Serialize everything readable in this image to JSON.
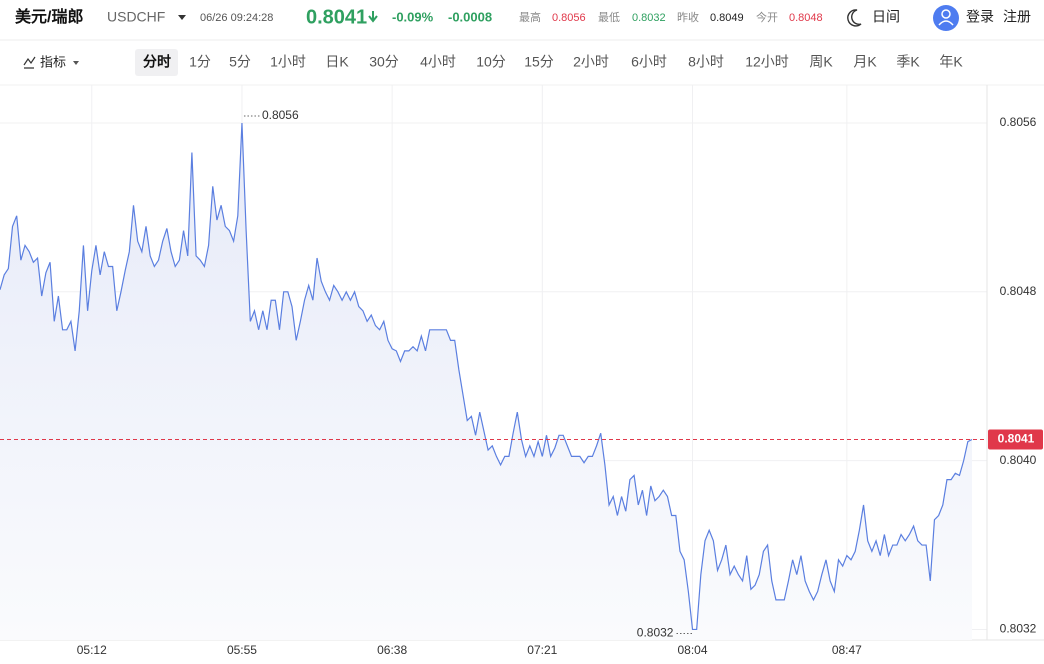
{
  "header": {
    "pair": "美元/瑞郎",
    "symbol": "USDCHF",
    "time": "06/26 09:24:28",
    "price": "0.8041",
    "change_pct": "-0.09%",
    "change": "-0.0008",
    "stats": [
      {
        "label": "最高",
        "value": "0.8056"
      },
      {
        "label": "最低",
        "value": "0.8032"
      },
      {
        "label": "昨收",
        "value": "0.8049"
      },
      {
        "label": "今开",
        "value": "0.8048"
      }
    ],
    "theme": "日间",
    "login": "登录",
    "register": "注册"
  },
  "toolbar": {
    "indicator": "指标",
    "intervals": [
      "分时",
      "1分",
      "5分",
      "1小时",
      "日K",
      "30分",
      "4小时",
      "10分",
      "15分",
      "2小时",
      "6小时",
      "8小时",
      "12小时",
      "周K",
      "月K",
      "季K",
      "年K"
    ]
  },
  "chart_data": {
    "type": "line",
    "color": "#5b7fe0",
    "grid": true,
    "categories": [
      null,
      null,
      null,
      null,
      null,
      null,
      null,
      null,
      null,
      null,
      null,
      null,
      null,
      null,
      null,
      null,
      null,
      null,
      null,
      null,
      null,
      null,
      "05:12",
      null,
      null,
      null,
      null,
      null,
      null,
      null,
      null,
      null,
      null,
      null,
      null,
      null,
      null,
      null,
      null,
      null,
      null,
      null,
      null,
      null,
      null,
      null,
      null,
      null,
      null,
      null,
      null,
      null,
      null,
      null,
      null,
      null,
      null,
      null,
      "05:55",
      null,
      null,
      null,
      null,
      null,
      null,
      null,
      null,
      null,
      null,
      null,
      null,
      null,
      null,
      null,
      null,
      null,
      null,
      null,
      null,
      null,
      null,
      null,
      null,
      null,
      null,
      null,
      null,
      null,
      null,
      null,
      null,
      null,
      null,
      null,
      "06:38",
      null,
      null,
      null,
      null,
      null,
      null,
      null,
      null,
      null,
      null,
      null,
      null,
      null,
      null,
      null,
      null,
      null,
      null,
      null,
      null,
      null,
      null,
      null,
      null,
      null,
      null,
      null,
      null,
      null,
      null,
      null,
      null,
      null,
      null,
      null,
      "07:21",
      null,
      null,
      null,
      null,
      null,
      null,
      null,
      null,
      null,
      null,
      null,
      null,
      null,
      null,
      null,
      null,
      null,
      null,
      null,
      null,
      null,
      null,
      null,
      null,
      null,
      null,
      null,
      null,
      null,
      null,
      null,
      null,
      null,
      null,
      null,
      "08:04",
      null,
      null,
      null,
      null,
      null,
      null,
      null,
      null,
      null,
      null,
      null,
      null,
      null,
      null,
      null,
      null,
      null,
      null,
      null,
      null,
      null,
      null,
      null,
      null,
      null,
      null,
      null,
      null,
      null,
      null,
      null,
      null,
      null,
      null,
      null,
      null,
      "08:47",
      null,
      null,
      null,
      null,
      null,
      null,
      null,
      null,
      null,
      null,
      null,
      null,
      null,
      null,
      null,
      null,
      null,
      null,
      null,
      null,
      null,
      null,
      null,
      null,
      null,
      null,
      null,
      null,
      null,
      null
    ],
    "values": [
      0.80481,
      0.80488,
      0.80491,
      0.80511,
      0.80516,
      0.80495,
      0.80502,
      0.80499,
      0.80494,
      0.80496,
      0.80478,
      0.80489,
      0.80494,
      0.80466,
      0.80478,
      0.80462,
      0.80462,
      0.80466,
      0.80452,
      0.80471,
      0.80502,
      0.80471,
      0.8049,
      0.80502,
      0.80488,
      0.80499,
      0.80492,
      0.80492,
      0.80471,
      0.8048,
      0.8049,
      0.80499,
      0.80521,
      0.80504,
      0.80499,
      0.80511,
      0.80497,
      0.80492,
      0.80495,
      0.80504,
      0.8051,
      0.80499,
      0.80492,
      0.80495,
      0.80509,
      0.80497,
      0.80546,
      0.80497,
      0.80495,
      0.80492,
      0.80502,
      0.8053,
      0.80514,
      0.80521,
      0.80511,
      0.80509,
      0.80504,
      0.80516,
      0.8056,
      0.80509,
      0.80466,
      0.80471,
      0.80462,
      0.80471,
      0.80462,
      0.80476,
      0.80476,
      0.80462,
      0.8048,
      0.8048,
      0.80473,
      0.80457,
      0.80466,
      0.80476,
      0.80483,
      0.80476,
      0.80496,
      0.80485,
      0.8048,
      0.80476,
      0.80483,
      0.8048,
      0.80476,
      0.8048,
      0.80476,
      0.8048,
      0.80473,
      0.80471,
      0.80466,
      0.80469,
      0.80464,
      0.80462,
      0.80466,
      0.80457,
      0.80453,
      0.80452,
      0.80447,
      0.80452,
      0.80452,
      0.80454,
      0.80452,
      0.80459,
      0.80452,
      0.80462,
      0.80462,
      0.80462,
      0.80462,
      0.80462,
      0.80457,
      0.80457,
      0.80443,
      0.80431,
      0.80419,
      0.80421,
      0.80412,
      0.80423,
      0.80414,
      0.80405,
      0.80407,
      0.80402,
      0.80398,
      0.80402,
      0.80402,
      0.80413,
      0.80423,
      0.8041,
      0.80402,
      0.80407,
      0.80402,
      0.80409,
      0.80402,
      0.80412,
      0.80402,
      0.80406,
      0.80412,
      0.80412,
      0.80407,
      0.80402,
      0.80402,
      0.80402,
      0.80399,
      0.80402,
      0.80402,
      0.80407,
      0.80413,
      0.80398,
      0.80379,
      0.80383,
      0.80374,
      0.80383,
      0.80376,
      0.80391,
      0.80393,
      0.80379,
      0.80386,
      0.80374,
      0.80388,
      0.80381,
      0.80383,
      0.80386,
      0.80383,
      0.80374,
      0.80374,
      0.80357,
      0.80353,
      0.80338,
      0.8032,
      0.8032,
      0.80346,
      0.80362,
      0.80367,
      0.80362,
      0.80348,
      0.80353,
      0.8036,
      0.80346,
      0.8035,
      0.80346,
      0.80343,
      0.80355,
      0.80339,
      0.80341,
      0.80346,
      0.80357,
      0.8036,
      0.80343,
      0.80334,
      0.80334,
      0.80334,
      0.80343,
      0.80353,
      0.80346,
      0.80355,
      0.80343,
      0.80338,
      0.80334,
      0.80338,
      0.80346,
      0.80353,
      0.80343,
      0.80338,
      0.80353,
      0.8035,
      0.80355,
      0.80353,
      0.80357,
      0.80367,
      0.80379,
      0.80362,
      0.80357,
      0.80362,
      0.80355,
      0.80365,
      0.80355,
      0.8036,
      0.8036,
      0.80365,
      0.80362,
      0.80365,
      0.80369,
      0.80362,
      0.8036,
      0.8036,
      0.80343,
      0.80372,
      0.80374,
      0.80379,
      0.80391,
      0.80391,
      0.80394,
      0.80393,
      0.804,
      0.80409,
      0.8041
    ],
    "ylim": [
      0.80315,
      0.80578
    ],
    "yticks": [
      0.8032,
      {
        "value": 0.804,
        "label": "0.8040"
      },
      0.8048,
      0.8056
    ],
    "annotations": {
      "high": 0.8056,
      "low": 0.8032,
      "last": 0.8041
    }
  }
}
